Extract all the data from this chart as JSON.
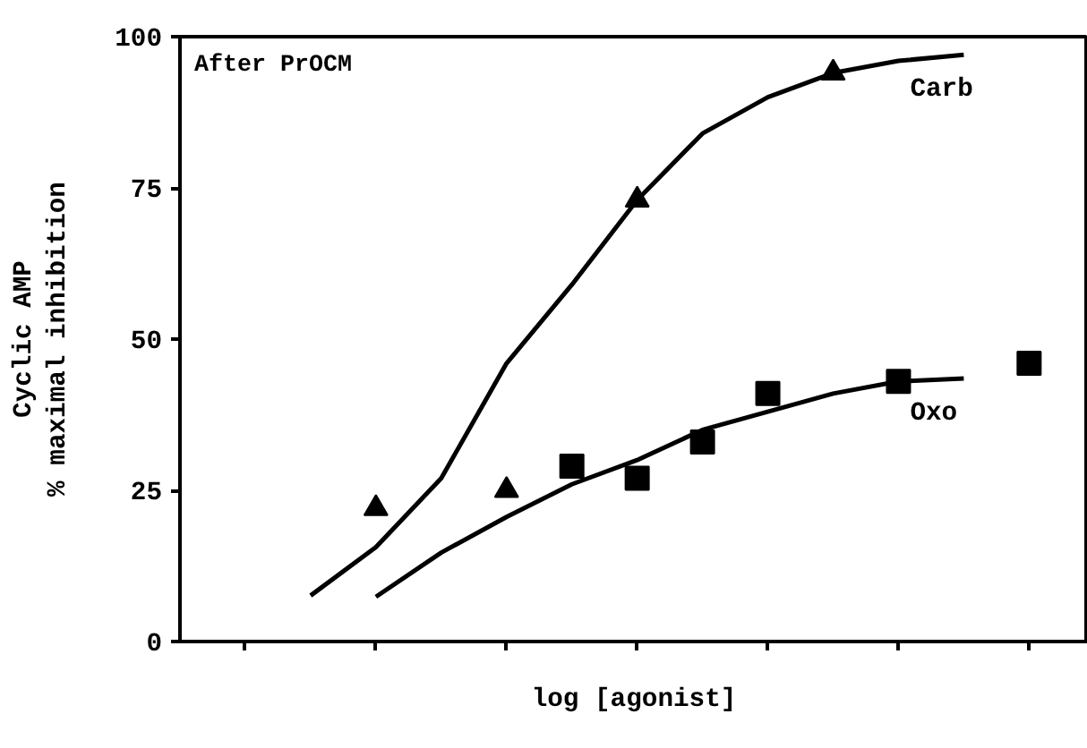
{
  "chart_data": {
    "type": "scatter",
    "xlabel": "log [agonist]",
    "ylabel": "Cyclic AMP\n% maximal inhibition",
    "annotations": [
      "After PrOCM"
    ],
    "categories": [
      null,
      null,
      null,
      null,
      null,
      null,
      null,
      null,
      null,
      null,
      null,
      null,
      null
    ],
    "ylim": [
      0,
      100
    ],
    "yticks": [
      0,
      25,
      50,
      75,
      100
    ],
    "tick_labels": "y",
    "grid": false,
    "series": [
      {
        "type": "line",
        "name": "Carb",
        "color": "#000000",
        "values": [
          null,
          7.6,
          15.6,
          27,
          46,
          59,
          73,
          84,
          90,
          94,
          96,
          97,
          null
        ]
      },
      {
        "type": "line",
        "name": "Oxo",
        "color": "#000000",
        "values": [
          null,
          null,
          7.4,
          14.7,
          20.6,
          26,
          30,
          35,
          38,
          41,
          43,
          43.5,
          null
        ]
      },
      {
        "marker": "triangle",
        "color": "#000000",
        "values": [
          null,
          null,
          22,
          null,
          25,
          null,
          73,
          null,
          null,
          94,
          null,
          null,
          null
        ]
      },
      {
        "marker": "square",
        "color": "#000000",
        "values": [
          null,
          null,
          null,
          null,
          null,
          29,
          27,
          33,
          41,
          null,
          43,
          null,
          46
        ]
      }
    ]
  }
}
